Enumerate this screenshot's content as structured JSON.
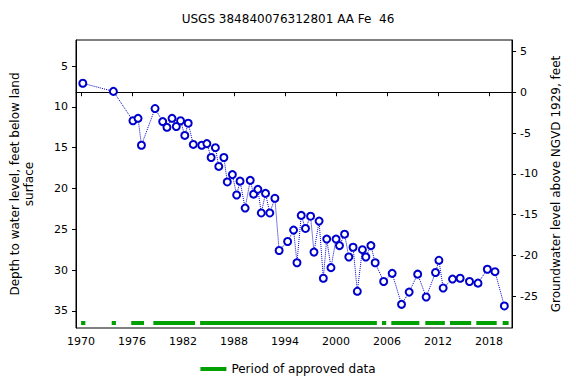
{
  "chart_data": {
    "type": "line",
    "title": "USGS 384840076312801 AA Fe  46",
    "y_label": "Depth to water level, feet below land\nsurface",
    "y2_label": "Groundwater level above NGVD 1929, feet",
    "x": [
      1970.2,
      1973.8,
      1976.1,
      1976.7,
      1977.1,
      1978.7,
      1979.6,
      1980.1,
      1980.7,
      1981.2,
      1981.7,
      1982.2,
      1982.6,
      1983.2,
      1984.2,
      1984.8,
      1985.3,
      1985.8,
      1986.2,
      1986.8,
      1987.2,
      1987.8,
      1988.3,
      1988.7,
      1989.3,
      1989.9,
      1990.3,
      1990.8,
      1991.2,
      1991.7,
      1992.2,
      1992.8,
      1993.3,
      1994.3,
      1995.0,
      1995.4,
      1995.9,
      1996.4,
      1997.0,
      1997.4,
      1998.0,
      1998.5,
      1998.9,
      1999.4,
      2000.0,
      2000.4,
      2001.0,
      2001.5,
      2002.0,
      2002.5,
      2003.1,
      2003.5,
      2004.1,
      2004.6,
      2005.6,
      2006.6,
      2007.7,
      2008.6,
      2009.6,
      2010.6,
      2011.7,
      2012.1,
      2012.6,
      2013.7,
      2014.6,
      2015.7,
      2016.7,
      2017.8,
      2018.7,
      2019.8
    ],
    "values": [
      7.1,
      8.1,
      11.7,
      11.4,
      14.7,
      10.2,
      11.8,
      12.5,
      11.4,
      12.4,
      11.7,
      13.5,
      12.0,
      14.6,
      14.7,
      14.5,
      16.2,
      15.0,
      17.3,
      16.2,
      19.2,
      18.3,
      20.8,
      19.1,
      22.4,
      19.0,
      20.7,
      20.1,
      23.0,
      20.6,
      23.0,
      21.2,
      27.6,
      26.5,
      25.1,
      29.1,
      23.3,
      24.9,
      23.4,
      27.8,
      24.0,
      31.0,
      26.2,
      29.7,
      26.2,
      27.0,
      25.6,
      28.4,
      27.2,
      32.6,
      27.5,
      28.4,
      27.0,
      29.1,
      31.4,
      30.4,
      34.2,
      32.7,
      30.5,
      33.3,
      30.3,
      28.8,
      32.2,
      31.1,
      31.0,
      31.4,
      31.6,
      29.9,
      30.2,
      34.4
    ],
    "color": "#0000cc",
    "marker": "open circle",
    "line_style": "dotted",
    "xlim": [
      1969.4,
      2020.7
    ],
    "xticks": [
      1970,
      1976,
      1982,
      1988,
      1994,
      2000,
      2006,
      2012,
      2018
    ],
    "ylim": [
      37.1,
      1.8
    ],
    "yticks": [
      5,
      10,
      15,
      20,
      25,
      30,
      35
    ],
    "y2lim": [
      -28.9,
      6.4
    ],
    "y2ticks": [
      -25,
      -20,
      -15,
      -10,
      -5,
      0,
      5
    ],
    "grid": false,
    "legend": "bottom",
    "approved_periods": {
      "name": "Period of approved data",
      "color": "#00a000",
      "ranges": [
        [
          1970.0,
          1970.5
        ],
        [
          1973.6,
          1974.1
        ],
        [
          1975.9,
          1977.4
        ],
        [
          1978.5,
          1983.4
        ],
        [
          1984.0,
          2004.8
        ],
        [
          2005.4,
          2005.9
        ],
        [
          2006.5,
          2009.8
        ],
        [
          2010.5,
          2012.8
        ],
        [
          2013.4,
          2015.9
        ],
        [
          2016.5,
          2018.9
        ],
        [
          2019.6,
          2020.3
        ]
      ]
    }
  }
}
